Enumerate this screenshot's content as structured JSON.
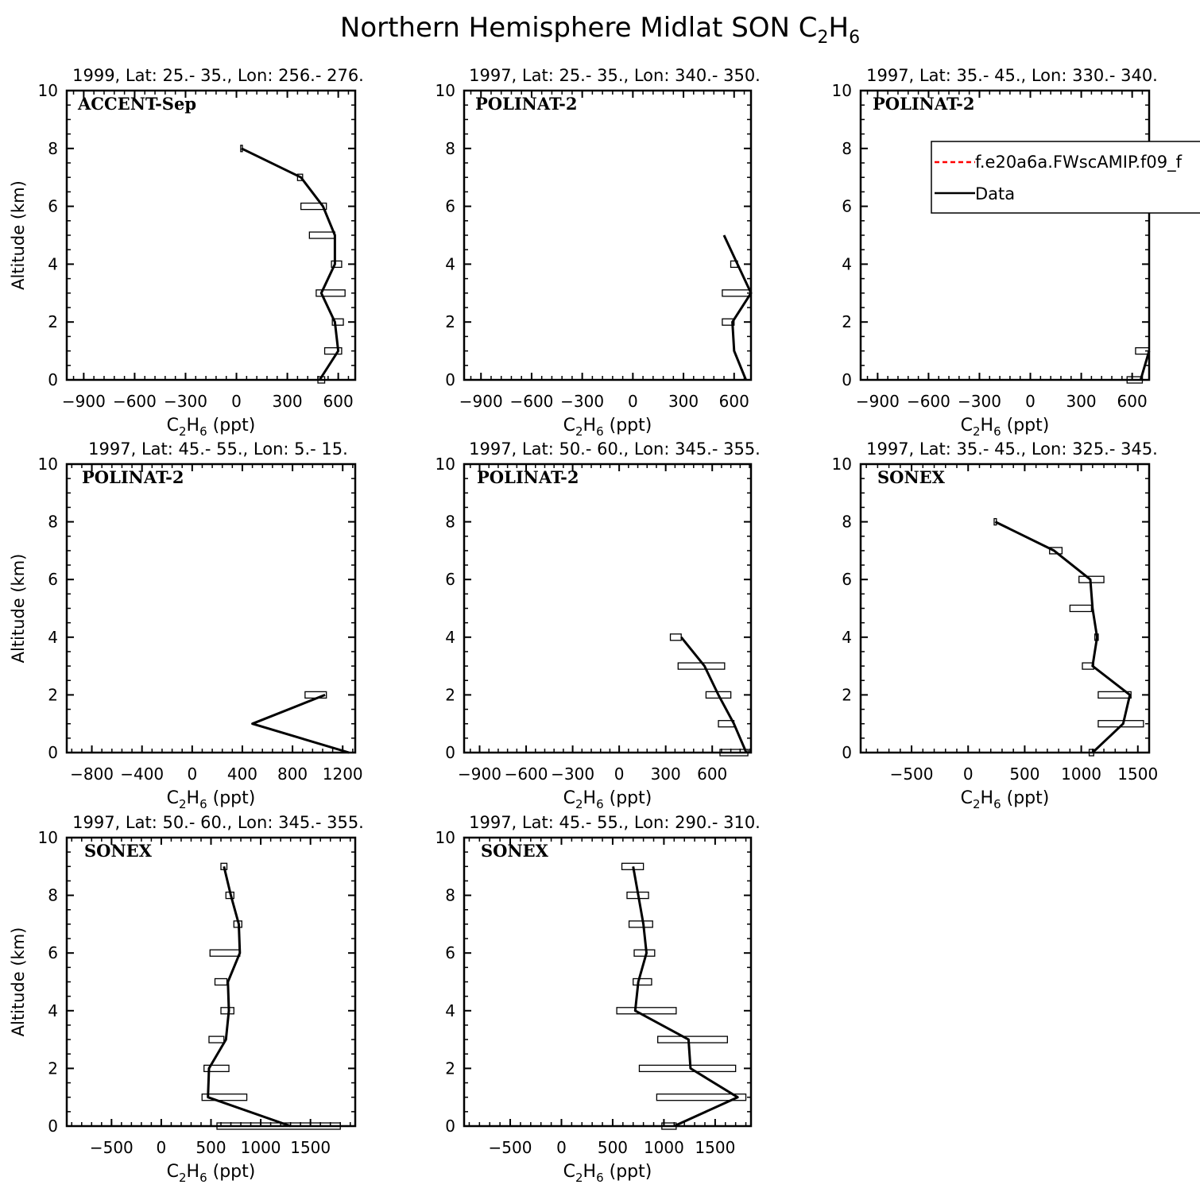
{
  "figure": {
    "title": "Northern Hemisphere Midlat SON C",
    "title_sub": "2",
    "title_mid": "H",
    "title_sub2": "6"
  },
  "legend": {
    "model_label": "f.e20a6a.FWscAMIP.f09_f",
    "data_label": "Data",
    "model_color": "#ff0000",
    "data_color": "#000000"
  },
  "chart_data": [
    {
      "type": "line",
      "campaign": "ACCENT-Sep",
      "subtitle": "1999, Lat: 25.- 35., Lon: 256.- 276.",
      "xlabel": "C2H6 (ppt)",
      "ylabel": "Altitude (km)",
      "xlim": [
        -1000,
        700
      ],
      "ylim": [
        0,
        10
      ],
      "xticks": [
        -900,
        -600,
        -300,
        0,
        300,
        600
      ],
      "yticks": [
        0,
        2,
        4,
        6,
        8,
        10
      ],
      "profile": [
        [
          490,
          0
        ],
        [
          600,
          1
        ],
        [
          580,
          2
        ],
        [
          500,
          3
        ],
        [
          580,
          4
        ],
        [
          580,
          5
        ],
        [
          510,
          6
        ],
        [
          380,
          7
        ],
        [
          30,
          8
        ]
      ],
      "boxes": [
        [
          480,
          520,
          0
        ],
        [
          520,
          620,
          1
        ],
        [
          565,
          630,
          2
        ],
        [
          470,
          640,
          3
        ],
        [
          560,
          620,
          4
        ],
        [
          430,
          580,
          5
        ],
        [
          380,
          530,
          6
        ],
        [
          360,
          390,
          7
        ],
        [
          25,
          35,
          8
        ]
      ]
    },
    {
      "type": "line",
      "campaign": "POLINAT-2",
      "subtitle": "1997, Lat: 25.- 35., Lon: 340.- 350.",
      "xlabel": "C2H6 (ppt)",
      "ylabel": "",
      "xlim": [
        -1000,
        700
      ],
      "ylim": [
        0,
        10
      ],
      "xticks": [
        -900,
        -600,
        -300,
        0,
        300,
        600
      ],
      "yticks": [
        0,
        2,
        4,
        6,
        8,
        10
      ],
      "profile": [
        [
          670,
          0
        ],
        [
          600,
          1
        ],
        [
          590,
          2
        ],
        [
          700,
          3
        ],
        [
          620,
          4
        ],
        [
          540,
          5
        ]
      ],
      "boxes": [
        [
          530,
          600,
          2
        ],
        [
          530,
          700,
          3
        ],
        [
          580,
          620,
          4
        ]
      ]
    },
    {
      "type": "line",
      "campaign": "POLINAT-2",
      "subtitle": "1997, Lat: 35.- 45., Lon: 330.- 340.",
      "xlabel": "C2H6 (ppt)",
      "ylabel": "",
      "xlim": [
        -1000,
        700
      ],
      "ylim": [
        0,
        10
      ],
      "xticks": [
        -900,
        -600,
        -300,
        0,
        300,
        600
      ],
      "yticks": [
        0,
        2,
        4,
        6,
        8,
        10
      ],
      "profile": [
        [
          650,
          0
        ],
        [
          700,
          1
        ]
      ],
      "boxes": [
        [
          570,
          660,
          0
        ],
        [
          620,
          700,
          1
        ]
      ],
      "legend": true
    },
    {
      "type": "line",
      "campaign": "POLINAT-2",
      "subtitle": "1997, Lat: 45.- 55., Lon: 5.- 15.",
      "xlabel": "C2H6 (ppt)",
      "ylabel": "Altitude (km)",
      "xlim": [
        -1000,
        1300
      ],
      "ylim": [
        0,
        10
      ],
      "xticks": [
        -800,
        -400,
        0,
        400,
        800,
        1200
      ],
      "yticks": [
        0,
        2,
        4,
        6,
        8,
        10
      ],
      "profile": [
        [
          1250,
          0
        ],
        [
          480,
          1
        ],
        [
          1060,
          2
        ]
      ],
      "boxes": [
        [
          900,
          1070,
          2
        ]
      ]
    },
    {
      "type": "line",
      "campaign": "POLINAT-2",
      "subtitle": "1997, Lat: 50.- 60., Lon: 345.- 355.",
      "xlabel": "C2H6 (ppt)",
      "ylabel": "",
      "xlim": [
        -1000,
        850
      ],
      "ylim": [
        0,
        10
      ],
      "xticks": [
        -900,
        -600,
        -300,
        0,
        300,
        600
      ],
      "yticks": [
        0,
        2,
        4,
        6,
        8,
        10
      ],
      "profile": [
        [
          820,
          0
        ],
        [
          740,
          1
        ],
        [
          640,
          2
        ],
        [
          550,
          3
        ],
        [
          400,
          4
        ]
      ],
      "boxes": [
        [
          650,
          830,
          0
        ],
        [
          640,
          740,
          1
        ],
        [
          560,
          720,
          2
        ],
        [
          380,
          680,
          3
        ],
        [
          330,
          400,
          4
        ]
      ]
    },
    {
      "type": "line",
      "campaign": "SONEX",
      "subtitle": "1997, Lat: 35.- 45., Lon: 325.- 345.",
      "xlabel": "C2H6 (ppt)",
      "ylabel": "",
      "xlim": [
        -950,
        1600
      ],
      "ylim": [
        0,
        10
      ],
      "xticks": [
        -500,
        0,
        500,
        1000,
        1500
      ],
      "yticks": [
        0,
        2,
        4,
        6,
        8,
        10
      ],
      "profile": [
        [
          1100,
          0
        ],
        [
          1370,
          1
        ],
        [
          1430,
          2
        ],
        [
          1100,
          3
        ],
        [
          1140,
          4
        ],
        [
          1100,
          5
        ],
        [
          1080,
          6
        ],
        [
          760,
          7
        ],
        [
          240,
          8
        ]
      ],
      "boxes": [
        [
          1070,
          1110,
          0
        ],
        [
          1150,
          1550,
          1
        ],
        [
          1150,
          1440,
          2
        ],
        [
          1010,
          1110,
          3
        ],
        [
          1120,
          1150,
          4
        ],
        [
          900,
          1090,
          5
        ],
        [
          980,
          1200,
          6
        ],
        [
          720,
          830,
          7
        ],
        [
          230,
          250,
          8
        ]
      ]
    },
    {
      "type": "line",
      "campaign": "SONEX",
      "subtitle": "1997, Lat: 50.- 60., Lon: 345.- 355.",
      "xlabel": "C2H6 (ppt)",
      "ylabel": "Altitude (km)",
      "xlim": [
        -950,
        1950
      ],
      "ylim": [
        0,
        10
      ],
      "xticks": [
        -500,
        0,
        500,
        1000,
        1500
      ],
      "yticks": [
        0,
        2,
        4,
        6,
        8,
        10
      ],
      "profile": [
        [
          1300,
          0
        ],
        [
          470,
          1
        ],
        [
          480,
          2
        ],
        [
          650,
          3
        ],
        [
          680,
          4
        ],
        [
          670,
          5
        ],
        [
          790,
          6
        ],
        [
          780,
          7
        ],
        [
          700,
          8
        ],
        [
          630,
          9
        ]
      ],
      "boxes": [
        [
          560,
          1800,
          0
        ],
        [
          410,
          860,
          1
        ],
        [
          430,
          680,
          2
        ],
        [
          480,
          630,
          3
        ],
        [
          600,
          730,
          4
        ],
        [
          540,
          660,
          5
        ],
        [
          490,
          790,
          6
        ],
        [
          730,
          810,
          7
        ],
        [
          650,
          730,
          8
        ],
        [
          600,
          660,
          9
        ]
      ]
    },
    {
      "type": "line",
      "campaign": "SONEX",
      "subtitle": "1997, Lat: 45.- 55., Lon: 290.- 310.",
      "xlabel": "C2H6 (ppt)",
      "ylabel": "",
      "xlim": [
        -950,
        1850
      ],
      "ylim": [
        0,
        10
      ],
      "xticks": [
        -500,
        0,
        500,
        1000,
        1500
      ],
      "yticks": [
        0,
        2,
        4,
        6,
        8,
        10
      ],
      "profile": [
        [
          1100,
          0
        ],
        [
          1720,
          1
        ],
        [
          1260,
          2
        ],
        [
          1240,
          3
        ],
        [
          720,
          4
        ],
        [
          750,
          5
        ],
        [
          830,
          6
        ],
        [
          800,
          7
        ],
        [
          750,
          8
        ],
        [
          700,
          9
        ]
      ],
      "boxes": [
        [
          980,
          1120,
          0
        ],
        [
          930,
          1800,
          1
        ],
        [
          760,
          1700,
          2
        ],
        [
          940,
          1620,
          3
        ],
        [
          540,
          1120,
          4
        ],
        [
          700,
          880,
          5
        ],
        [
          710,
          910,
          6
        ],
        [
          660,
          890,
          7
        ],
        [
          640,
          850,
          8
        ],
        [
          590,
          800,
          9
        ]
      ]
    }
  ]
}
